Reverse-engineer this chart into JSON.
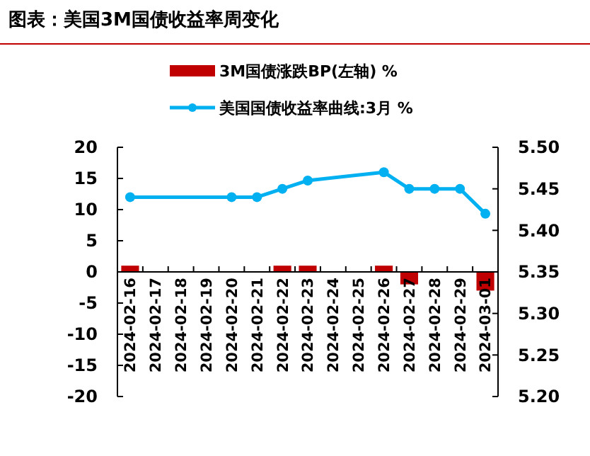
{
  "chart_data": {
    "type": "bar",
    "title": "图表：美国3M国债收益率周变化",
    "categories": [
      "2024-02-16",
      "2024-02-17",
      "2024-02-18",
      "2024-02-19",
      "2024-02-20",
      "2024-02-21",
      "2024-02-22",
      "2024-02-23",
      "2024-02-24",
      "2024-02-25",
      "2024-02-26",
      "2024-02-27",
      "2024-02-28",
      "2024-02-29",
      "2024-03-01"
    ],
    "series": [
      {
        "name": "3M国债涨跌BP(左轴) %",
        "color": "#c00000",
        "values": [
          1,
          null,
          null,
          null,
          0,
          0,
          1,
          1,
          null,
          null,
          1,
          -2,
          0,
          0,
          -3
        ]
      },
      {
        "name": "美国国债收益率曲线:3月 %",
        "type": "line",
        "axis": "y2",
        "color": "#00b0f0",
        "values": [
          5.44,
          null,
          null,
          null,
          5.44,
          5.44,
          5.45,
          5.46,
          null,
          null,
          5.47,
          5.45,
          5.45,
          5.45,
          5.42
        ]
      }
    ],
    "ylim": [
      -20,
      20
    ],
    "yticks": [
      -20,
      -15,
      -10,
      -5,
      0,
      5,
      10,
      15,
      20
    ],
    "y2lim": [
      5.2,
      5.5
    ],
    "y2ticks": [
      {
        "value": 5.2,
        "label": "5.20"
      },
      {
        "value": 5.25,
        "label": "5.25"
      },
      {
        "value": 5.3,
        "label": "5.30"
      },
      {
        "value": 5.35,
        "label": "5.35"
      },
      {
        "value": 5.4,
        "label": "5.40"
      },
      {
        "value": 5.45,
        "label": "5.45"
      },
      {
        "value": 5.5,
        "label": "5.50"
      }
    ],
    "marker": "circle",
    "line_style": "solid",
    "legend": "top",
    "grid": false
  }
}
